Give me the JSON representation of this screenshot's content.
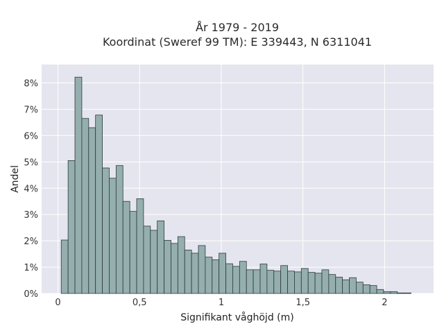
{
  "chart_data": {
    "type": "bar",
    "title_lines": [
      "År 1979 - 2019",
      "Koordinat (Sweref 99 TM): E 339443, N 6311041"
    ],
    "xlabel": "Signifikant våghöjd (m)",
    "ylabel": "Andel",
    "xlim": [
      -0.1,
      2.3
    ],
    "ylim": [
      0,
      8.7
    ],
    "x_ticks": [
      0,
      0.5,
      1,
      1.5,
      2
    ],
    "x_tick_labels": [
      "0",
      "0,5",
      "1",
      "1,5",
      "2"
    ],
    "y_ticks": [
      0,
      1,
      2,
      3,
      4,
      5,
      6,
      7,
      8
    ],
    "y_tick_labels": [
      "0%",
      "1%",
      "2%",
      "3%",
      "4%",
      "5%",
      "6%",
      "7%",
      "8%"
    ],
    "bin_width": 0.042,
    "bin_starts": [
      0.02,
      0.062,
      0.104,
      0.146,
      0.188,
      0.23,
      0.272,
      0.314,
      0.356,
      0.398,
      0.44,
      0.482,
      0.524,
      0.566,
      0.608,
      0.65,
      0.692,
      0.734,
      0.776,
      0.818,
      0.86,
      0.902,
      0.944,
      0.986,
      1.028,
      1.07,
      1.112,
      1.154,
      1.196,
      1.238,
      1.28,
      1.322,
      1.364,
      1.406,
      1.448,
      1.49,
      1.532,
      1.574,
      1.616,
      1.658,
      1.7,
      1.742,
      1.784,
      1.826,
      1.868,
      1.91,
      1.952,
      1.994,
      2.036,
      2.078,
      2.12
    ],
    "values": [
      2.03,
      5.05,
      8.22,
      6.65,
      6.3,
      6.78,
      4.77,
      4.38,
      4.86,
      3.5,
      3.12,
      3.6,
      2.56,
      2.4,
      2.76,
      2.02,
      1.9,
      2.16,
      1.65,
      1.53,
      1.82,
      1.38,
      1.28,
      1.53,
      1.13,
      1.03,
      1.22,
      0.9,
      0.9,
      1.12,
      0.88,
      0.85,
      1.06,
      0.85,
      0.82,
      0.95,
      0.8,
      0.77,
      0.9,
      0.72,
      0.62,
      0.52,
      0.6,
      0.43,
      0.33,
      0.3,
      0.15,
      0.07,
      0.07,
      0.02,
      0.02
    ]
  }
}
